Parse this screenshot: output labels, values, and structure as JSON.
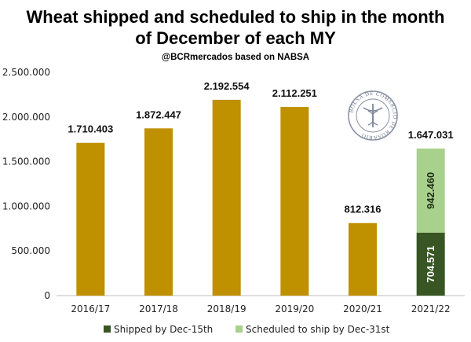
{
  "chart_data": {
    "type": "bar",
    "title_line1": "Wheat shipped and scheduled to ship in the month",
    "title_line2": "of December of each MY",
    "subtitle": "@BCRmercados based on NABSA",
    "categories": [
      "2016/17",
      "2017/18",
      "2018/19",
      "2019/20",
      "2020/21",
      "2021/22"
    ],
    "totals": [
      1710403,
      1872447,
      2192554,
      2112251,
      812316,
      1647031
    ],
    "total_labels": [
      "1.710.403",
      "1.872.447",
      "2.192.554",
      "2.112.251",
      "812.316",
      "1.647.031"
    ],
    "stacked": {
      "category": "2021/22",
      "series": [
        {
          "name": "Shipped by Dec-15th",
          "value": 704571,
          "label": "704.571",
          "color": "#375623"
        },
        {
          "name": "Scheduled to ship by Dec-31st",
          "value": 942460,
          "label": "942.460",
          "color": "#a9d18e"
        }
      ]
    },
    "bar_color": "#bf9000",
    "ylim": [
      0,
      2500000
    ],
    "yticks": [
      0,
      500000,
      1000000,
      1500000,
      2000000,
      2500000
    ],
    "ytick_labels": [
      "0",
      "500.000",
      "1.000.000",
      "1.500.000",
      "2.000.000",
      "2.500.000"
    ],
    "grid": false,
    "legend_position": "bottom",
    "logo_text": "BOLSA DE COMERCIO DE ROSARIO"
  }
}
